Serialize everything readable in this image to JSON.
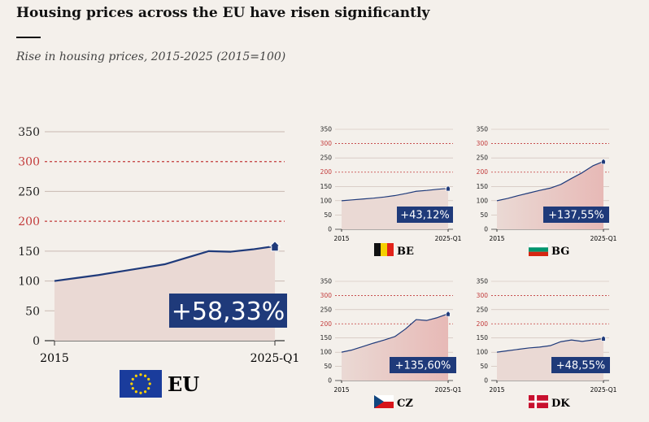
{
  "title": "Housing prices across the EU have risen significantly",
  "subtitle": "Rise in housing prices, 2015-2025 (2015=100)",
  "colors": {
    "background": "#f4f0eb",
    "line": "#1f3a7a",
    "area": "#ead9d4",
    "area_strong": "#e7b9b6",
    "grid": "#c9b9b2",
    "threshold": "#c23a3a",
    "badge": "#1f3a7a"
  },
  "chart_data": [
    {
      "id": "EU",
      "type": "area",
      "country": "EU",
      "flag": "eu-flag",
      "xlabels": [
        "2015",
        "2025-Q1"
      ],
      "yticks": [
        0,
        50,
        100,
        150,
        200,
        250,
        300,
        350
      ],
      "threshold_ticks": [
        200,
        300
      ],
      "ylim": [
        0,
        350
      ],
      "x": [
        2015,
        2016,
        2017,
        2018,
        2019,
        2020,
        2021,
        2022,
        2023,
        2024,
        2025
      ],
      "values": [
        100,
        105,
        110,
        116,
        122,
        128,
        139,
        150,
        149,
        153,
        158.33
      ],
      "change_label": "+58,33%"
    },
    {
      "id": "BE",
      "type": "area",
      "country": "BE",
      "flag": "belgium-flag",
      "xlabels": [
        "2015",
        "2025-Q1"
      ],
      "yticks": [
        0,
        50,
        100,
        150,
        200,
        250,
        300,
        350
      ],
      "threshold_ticks": [
        200,
        300
      ],
      "ylim": [
        0,
        350
      ],
      "x": [
        2015,
        2016,
        2017,
        2018,
        2019,
        2020,
        2021,
        2022,
        2023,
        2024,
        2025
      ],
      "values": [
        100,
        103,
        106,
        109,
        113,
        118,
        125,
        133,
        136,
        140,
        143.12
      ],
      "change_label": "+43,12%"
    },
    {
      "id": "BG",
      "type": "area",
      "country": "BG",
      "flag": "bulgaria-flag",
      "xlabels": [
        "2015",
        "2025-Q1"
      ],
      "yticks": [
        0,
        50,
        100,
        150,
        200,
        250,
        300,
        350
      ],
      "threshold_ticks": [
        200,
        300
      ],
      "ylim": [
        0,
        350
      ],
      "x": [
        2015,
        2016,
        2017,
        2018,
        2019,
        2020,
        2021,
        2022,
        2023,
        2024,
        2025
      ],
      "values": [
        100,
        108,
        118,
        127,
        136,
        144,
        157,
        178,
        198,
        222,
        237.55
      ],
      "change_label": "+137,55%"
    },
    {
      "id": "CZ",
      "type": "area",
      "country": "CZ",
      "flag": "czech-flag",
      "xlabels": [
        "2015",
        "2025-Q1"
      ],
      "yticks": [
        0,
        50,
        100,
        150,
        200,
        250,
        300,
        350
      ],
      "threshold_ticks": [
        200,
        300
      ],
      "ylim": [
        0,
        350
      ],
      "x": [
        2015,
        2016,
        2017,
        2018,
        2019,
        2020,
        2021,
        2022,
        2023,
        2024,
        2025
      ],
      "values": [
        100,
        108,
        120,
        132,
        143,
        155,
        182,
        215,
        212,
        222,
        235.6
      ],
      "change_label": "+135,60%"
    },
    {
      "id": "DK",
      "type": "area",
      "country": "DK",
      "flag": "denmark-flag",
      "xlabels": [
        "2015",
        "2025-Q1"
      ],
      "yticks": [
        0,
        50,
        100,
        150,
        200,
        250,
        300,
        350
      ],
      "threshold_ticks": [
        200,
        300
      ],
      "ylim": [
        0,
        350
      ],
      "x": [
        2015,
        2016,
        2017,
        2018,
        2019,
        2020,
        2021,
        2022,
        2023,
        2024,
        2025
      ],
      "values": [
        100,
        105,
        110,
        115,
        118,
        123,
        137,
        143,
        138,
        143,
        148.55
      ],
      "change_label": "+48,55%"
    }
  ]
}
